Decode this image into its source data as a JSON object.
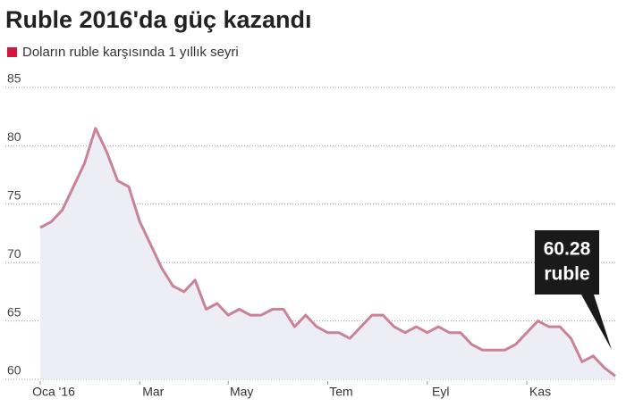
{
  "chart_data": {
    "type": "line",
    "title": "Ruble 2016'da güç kazandı",
    "categories": [
      "Oca '16",
      null,
      null,
      null,
      null,
      null,
      null,
      null,
      null,
      "Mar",
      null,
      null,
      null,
      null,
      null,
      null,
      null,
      "May",
      null,
      null,
      null,
      null,
      null,
      null,
      null,
      null,
      "Tem",
      null,
      null,
      null,
      null,
      null,
      null,
      null,
      null,
      "Eyl",
      null,
      null,
      null,
      null,
      null,
      null,
      null,
      null,
      "Kas",
      null,
      null,
      null,
      null,
      null,
      null,
      null,
      null
    ],
    "series": [
      {
        "name": "Doların ruble karşısında 1 yıllık seyri",
        "color": "#c98394",
        "legend_color": "#d4163c",
        "area_color": "#ededf5",
        "values": [
          73.0,
          73.5,
          74.5,
          76.5,
          78.5,
          81.5,
          79.5,
          77,
          76.5,
          73.5,
          71.5,
          69.5,
          68,
          67.5,
          68.5,
          66,
          66.5,
          65.5,
          66,
          65.5,
          65.5,
          66,
          66,
          64.5,
          65.5,
          64.5,
          64,
          64,
          63.5,
          64.5,
          65.5,
          65.5,
          64.5,
          64,
          64.5,
          64,
          64.5,
          64,
          64,
          63,
          62.5,
          62.5,
          62.5,
          63,
          64,
          65,
          64.5,
          64.5,
          63.5,
          61.5,
          62,
          61,
          60.28
        ]
      }
    ],
    "annotation": {
      "lines": [
        "60.28",
        "ruble"
      ]
    },
    "ylim": [
      60,
      85
    ],
    "yticks": [
      60,
      65,
      70,
      75,
      80,
      85
    ],
    "grid": true
  }
}
